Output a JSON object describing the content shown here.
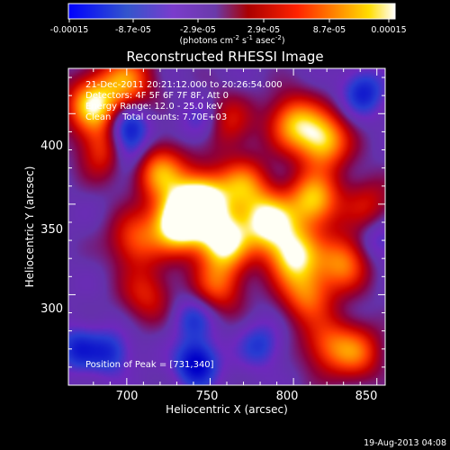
{
  "chart_data": {
    "type": "heatmap",
    "title": "Reconstructed RHESSI Image",
    "xlabel": "Heliocentric X (arcsec)",
    "ylabel": "Heliocentric Y (arcsec)",
    "xlim": [
      665,
      855
    ],
    "ylim": [
      250,
      425
    ],
    "x_ticks": [
      700,
      750,
      800,
      850
    ],
    "y_ticks": [
      300,
      350,
      400
    ],
    "colorbar": {
      "ticks": [
        "-0.00015",
        "-8.7e-05",
        "-2.9e-05",
        "2.9e-05",
        "8.7e-05",
        "0.00015"
      ],
      "unit_text": "(photons cm",
      "unit_sup1": "-2",
      "unit_mid": " s",
      "unit_sup2": "-1",
      "unit_mid2": " asec",
      "unit_sup3": "-2",
      "unit_end": ")",
      "range": [
        -0.00015,
        0.00015
      ]
    },
    "annotations": [
      "21-Dec-2011 20:21:12.000 to 20:26:54.000",
      "Detectors: 4F 5F 6F 7F 8F, Att 0",
      "Energy Range: 12.0 - 25.0 keV",
      "Clean    Total counts: 7.70E+03"
    ],
    "peak_text": "Position of Peak = [731,340]",
    "peak": [
      731,
      340
    ],
    "blobs": [
      [
        731,
        340,
        1.0
      ],
      [
        745,
        352,
        0.9
      ],
      [
        758,
        330,
        0.85
      ],
      [
        785,
        340,
        0.8
      ],
      [
        800,
        322,
        0.75
      ],
      [
        812,
        352,
        0.7
      ],
      [
        818,
        385,
        0.7
      ],
      [
        800,
        395,
        0.6
      ],
      [
        830,
        318,
        0.55
      ],
      [
        808,
        300,
        0.5
      ],
      [
        720,
        368,
        0.6
      ],
      [
        705,
        330,
        0.45
      ],
      [
        680,
        405,
        0.75
      ],
      [
        688,
        380,
        0.5
      ],
      [
        700,
        418,
        0.55
      ],
      [
        755,
        305,
        0.45
      ],
      [
        770,
        360,
        0.55
      ],
      [
        712,
        300,
        0.35
      ],
      [
        838,
        268,
        0.45
      ],
      [
        820,
        272,
        0.4
      ],
      [
        760,
        395,
        0.35
      ],
      [
        845,
        350,
        0.3
      ]
    ],
    "dips": [
      [
        742,
        262,
        0.55
      ],
      [
        690,
        268,
        0.35
      ],
      [
        670,
        270,
        0.35
      ],
      [
        700,
        392,
        0.5
      ],
      [
        700,
        378,
        0.35
      ],
      [
        842,
        412,
        0.4
      ],
      [
        745,
        395,
        0.25
      ],
      [
        780,
        272,
        0.3
      ],
      [
        740,
        287,
        0.3
      ],
      [
        852,
        330,
        0.25
      ]
    ],
    "grid": false,
    "colorscale": [
      "#0000cc",
      "#3a00cc",
      "#7a00aa",
      "#6b2fae",
      "#cc0000",
      "#ff6600",
      "#ffcc00",
      "#ffffff"
    ]
  },
  "footer": {
    "timestamp": "19-Aug-2013 04:08"
  }
}
